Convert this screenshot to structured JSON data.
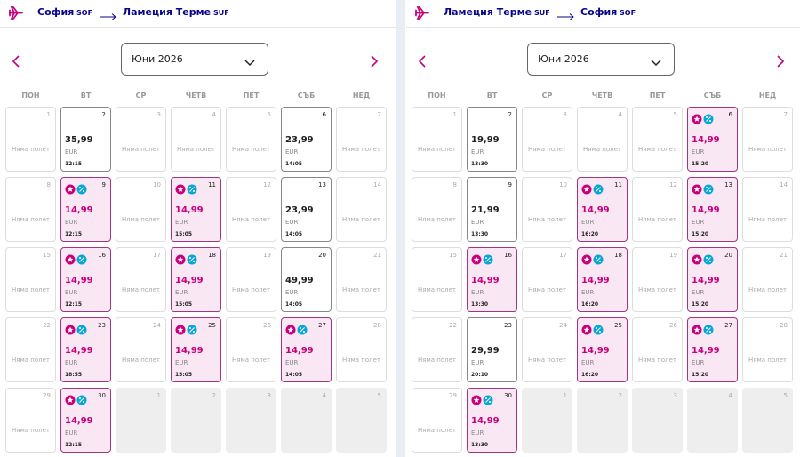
{
  "panels": [
    {
      "from": "София",
      "from_code": "SOF",
      "to": "Ламеция Терме",
      "to_code": "SUF",
      "month": "Юни 2026",
      "weekdays": [
        "ПОН",
        "ВТ",
        "СР",
        "ЧЕТВ",
        "ПЕТ",
        "СЪБ",
        "НЕД"
      ],
      "days": [
        {
          "day": "1",
          "text": "Няма полет"
        },
        {
          "day": "2",
          "price": "35,99",
          "currency": "EUR",
          "time": "12:15"
        },
        {
          "day": "3",
          "text": "Няма полет"
        },
        {
          "day": "4",
          "text": "Няма полет"
        },
        {
          "day": "5",
          "text": "Няма полет"
        },
        {
          "day": "6",
          "price": "23,99",
          "currency": "EUR",
          "time": "14:05"
        },
        {
          "day": "7",
          "text": "Няма полет"
        },
        {
          "day": "8",
          "text": "Няма полет"
        },
        {
          "day": "9",
          "price": "14,99",
          "currency": "EUR",
          "time": "12:15",
          "promo": true
        },
        {
          "day": "10",
          "text": "Няма полет"
        },
        {
          "day": "11",
          "price": "14,99",
          "currency": "EUR",
          "time": "15:05",
          "promo": true
        },
        {
          "day": "12",
          "text": "Няма полет"
        },
        {
          "day": "13",
          "price": "23,99",
          "currency": "EUR",
          "time": "14:05"
        },
        {
          "day": "14",
          "text": "Няма полет"
        },
        {
          "day": "15",
          "text": "Няма полет"
        },
        {
          "day": "16",
          "price": "14,99",
          "currency": "EUR",
          "time": "12:15",
          "promo": true
        },
        {
          "day": "17",
          "text": "Няма полет"
        },
        {
          "day": "18",
          "price": "14,99",
          "currency": "EUR",
          "time": "15:05",
          "promo": true
        },
        {
          "day": "19",
          "text": "Няма полет"
        },
        {
          "day": "20",
          "price": "49,99",
          "currency": "EUR",
          "time": "14:05"
        },
        {
          "day": "21",
          "text": "Няма полет"
        },
        {
          "day": "22",
          "text": "Няма полет"
        },
        {
          "day": "23",
          "price": "14,99",
          "currency": "EUR",
          "time": "18:55",
          "promo": true
        },
        {
          "day": "24",
          "text": "Няма полет"
        },
        {
          "day": "25",
          "price": "14,99",
          "currency": "EUR",
          "time": "15:05",
          "promo": true
        },
        {
          "day": "26",
          "text": "Няма полет"
        },
        {
          "day": "27",
          "price": "14,99",
          "currency": "EUR",
          "time": "14:05",
          "promo": true
        },
        {
          "day": "28",
          "text": "Няма полет"
        },
        {
          "day": "29",
          "text": "Няма полет"
        },
        {
          "day": "30",
          "price": "14,99",
          "currency": "EUR",
          "time": "12:15",
          "promo": true
        },
        {
          "day": "1",
          "outside": true
        },
        {
          "day": "2",
          "outside": true
        },
        {
          "day": "3",
          "outside": true
        },
        {
          "day": "4",
          "outside": true
        },
        {
          "day": "5",
          "outside": true
        }
      ]
    },
    {
      "from": "Ламеция Терме",
      "from_code": "SUF",
      "to": "София",
      "to_code": "SOF",
      "month": "Юни 2026",
      "weekdays": [
        "ПОН",
        "ВТ",
        "СР",
        "ЧЕТВ",
        "ПЕТ",
        "СЪБ",
        "НЕД"
      ],
      "days": [
        {
          "day": "1",
          "text": "Няма полет"
        },
        {
          "day": "2",
          "price": "19,99",
          "currency": "EUR",
          "time": "13:30"
        },
        {
          "day": "3",
          "text": "Няма полет"
        },
        {
          "day": "4",
          "text": "Няма полет"
        },
        {
          "day": "5",
          "text": "Няма полет"
        },
        {
          "day": "6",
          "price": "14,99",
          "currency": "EUR",
          "time": "15:20",
          "promo": true
        },
        {
          "day": "7",
          "text": "Няма полет"
        },
        {
          "day": "8",
          "text": "Няма полет"
        },
        {
          "day": "9",
          "price": "21,99",
          "currency": "EUR",
          "time": "13:30"
        },
        {
          "day": "10",
          "text": "Няма полет"
        },
        {
          "day": "11",
          "price": "14,99",
          "currency": "EUR",
          "time": "16:20",
          "promo": true
        },
        {
          "day": "12",
          "text": "Няма полет"
        },
        {
          "day": "13",
          "price": "14,99",
          "currency": "EUR",
          "time": "15:20",
          "promo": true
        },
        {
          "day": "14",
          "text": "Няма полет"
        },
        {
          "day": "15",
          "text": "Няма полет"
        },
        {
          "day": "16",
          "price": "14,99",
          "currency": "EUR",
          "time": "13:30",
          "promo": true
        },
        {
          "day": "17",
          "text": "Няма полет"
        },
        {
          "day": "18",
          "price": "14,99",
          "currency": "EUR",
          "time": "16:20",
          "promo": true
        },
        {
          "day": "19",
          "text": "Няма полет"
        },
        {
          "day": "20",
          "price": "14,99",
          "currency": "EUR",
          "time": "15:20",
          "promo": true
        },
        {
          "day": "21",
          "text": "Няма полет"
        },
        {
          "day": "22",
          "text": "Няма полет"
        },
        {
          "day": "23",
          "price": "29,99",
          "currency": "EUR",
          "time": "20:10"
        },
        {
          "day": "24",
          "text": "Няма полет"
        },
        {
          "day": "25",
          "price": "14,99",
          "currency": "EUR",
          "time": "16:20",
          "promo": true
        },
        {
          "day": "26",
          "text": "Няма полет"
        },
        {
          "day": "27",
          "price": "14,99",
          "currency": "EUR",
          "time": "15:20",
          "promo": true
        },
        {
          "day": "28",
          "text": "Няма полет"
        },
        {
          "day": "29",
          "text": "Няма полет"
        },
        {
          "day": "30",
          "price": "14,99",
          "currency": "EUR",
          "time": "13:30",
          "promo": true
        },
        {
          "day": "1",
          "outside": true
        },
        {
          "day": "2",
          "outside": true
        },
        {
          "day": "3",
          "outside": true
        },
        {
          "day": "4",
          "outside": true
        },
        {
          "day": "5",
          "outside": true
        }
      ]
    }
  ]
}
